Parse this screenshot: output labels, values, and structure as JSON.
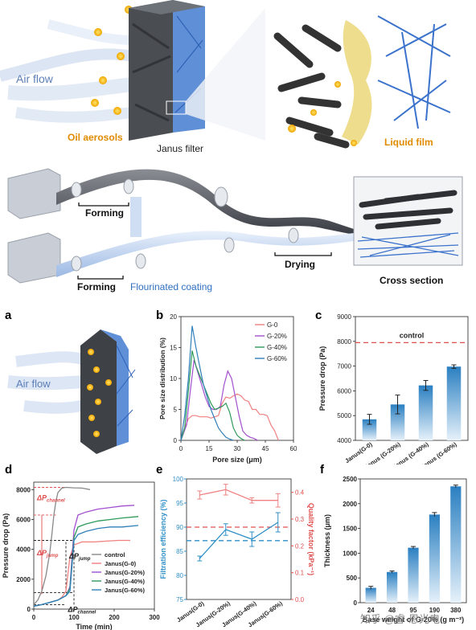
{
  "schematic": {
    "air_flow": "Air flow",
    "oil_aerosols": "Oil aerosols",
    "janus_filter": "Janus filter",
    "liquid_film": "Liquid film",
    "forming_top": "Forming",
    "forming_bottom": "Forming",
    "flourinated_coating": "Flourinated coating",
    "drying": "Drying",
    "cross_section": "Cross section"
  },
  "panel_a": {
    "letter": "a",
    "air_flow": "Air flow"
  },
  "panel_b": {
    "letter": "b"
  },
  "panel_c": {
    "letter": "c"
  },
  "panel_d": {
    "letter": "d",
    "dp_channel": "ΔP",
    "dp_channel_sub": "channel",
    "dp_jump": "ΔP",
    "dp_jump_sub": "jump",
    "dp_jump2": "ΔP",
    "dp_jump2_sub": "jump",
    "dp_channel2": "ΔP",
    "dp_channel2_sub": "channel"
  },
  "panel_e": {
    "letter": "e"
  },
  "panel_f": {
    "letter": "f"
  },
  "watermark": "知乎 @睿·恩光电",
  "chart_data": [
    {
      "id": "b",
      "type": "line",
      "xlabel": "Pore size (μm)",
      "ylabel": "Pore size distribution (%)",
      "xlim": [
        0,
        60
      ],
      "ylim": [
        0,
        20
      ],
      "xticks": [
        "0",
        "15",
        "30",
        "45",
        "60"
      ],
      "yticks": [
        "0",
        "5",
        "10",
        "15",
        "20"
      ],
      "legend_position": "top-right",
      "series": [
        {
          "name": "G-0",
          "color": "#f08080",
          "x": [
            0,
            2,
            4,
            6,
            8,
            10,
            12,
            14,
            16,
            18,
            20,
            22,
            24,
            26,
            28,
            30,
            32,
            34,
            36,
            38,
            40,
            42,
            44,
            46,
            48,
            50,
            52
          ],
          "y": [
            0,
            2,
            3.5,
            4,
            4,
            3.8,
            3.8,
            3.8,
            3.6,
            3.8,
            4,
            6,
            7,
            6.8,
            7.2,
            7.5,
            7.2,
            6.5,
            6.3,
            5,
            5,
            4.2,
            4.2,
            4,
            2.5,
            1.5,
            0
          ]
        },
        {
          "name": "G-20%",
          "color": "#a24fd0",
          "x": [
            0,
            3,
            5,
            7,
            9,
            11,
            13,
            15,
            17,
            19,
            21,
            23,
            25,
            27,
            29,
            31,
            33,
            35,
            37,
            39,
            41
          ],
          "y": [
            0,
            2.5,
            8,
            13,
            11,
            9,
            7,
            5.5,
            5,
            5,
            5.5,
            9,
            11.2,
            10,
            7,
            4,
            1.5,
            0.8,
            0.5,
            0.3,
            0
          ]
        },
        {
          "name": "G-40%",
          "color": "#2e9a5a",
          "x": [
            0,
            2,
            4,
            6,
            8,
            10,
            12,
            14,
            16,
            18,
            20,
            22,
            24,
            26,
            28,
            30,
            32,
            34
          ],
          "y": [
            0,
            2,
            8,
            14.5,
            12,
            10.5,
            9,
            7.5,
            6,
            5,
            5.2,
            5.5,
            6,
            4.5,
            2,
            0.8,
            0.3,
            0
          ]
        },
        {
          "name": "G-60%",
          "color": "#2f7fb8",
          "x": [
            0,
            2,
            4,
            6,
            8,
            10,
            12,
            14,
            16,
            18,
            20,
            22,
            24,
            26,
            28
          ],
          "y": [
            0,
            4,
            10,
            18.5,
            15,
            12,
            9,
            7,
            5,
            3.5,
            2,
            1.2,
            0.5,
            0.2,
            0
          ]
        }
      ]
    },
    {
      "id": "c",
      "type": "bar",
      "ylabel": "Pressure drop (Pa)",
      "ylim": [
        4000,
        9000
      ],
      "yticks": [
        "4000",
        "5000",
        "6000",
        "7000",
        "8000",
        "9000"
      ],
      "categories": [
        "Janus(G-0)",
        "Janus (G-20%)",
        "Janus (G-40%)",
        "Janus (G-60%)"
      ],
      "values": [
        4850,
        5450,
        6220,
        6980
      ],
      "errors": [
        200,
        380,
        200,
        70
      ],
      "reference_label": "control",
      "reference_value": 7950
    },
    {
      "id": "d",
      "type": "line",
      "xlabel": "Time (min)",
      "ylabel": "Pressure drop (Pa)",
      "xlim": [
        0,
        300
      ],
      "ylim": [
        0,
        8500
      ],
      "xticks": [
        "0",
        "100",
        "200",
        "300"
      ],
      "yticks": [
        "0",
        "2000",
        "4000",
        "6000",
        "8000"
      ],
      "legend_position": "bottom-right",
      "series": [
        {
          "name": "control",
          "color": "#888888",
          "x": [
            0,
            10,
            20,
            30,
            40,
            45,
            50,
            55,
            60,
            70,
            80,
            100,
            120,
            140
          ],
          "y": [
            300,
            600,
            1200,
            2200,
            3800,
            5000,
            6300,
            7200,
            7800,
            8100,
            8150,
            8120,
            8100,
            8000
          ]
        },
        {
          "name": "Janus(G-0)",
          "color": "#f08080",
          "x": [
            0,
            20,
            40,
            60,
            70,
            80,
            90,
            100,
            120,
            150,
            180,
            210,
            240
          ],
          "y": [
            200,
            300,
            450,
            600,
            800,
            1200,
            3500,
            4300,
            4500,
            4500,
            4550,
            4600,
            4600
          ]
        },
        {
          "name": "Janus(G-20%)",
          "color": "#a24fd0",
          "x": [
            0,
            20,
            40,
            60,
            70,
            80,
            90,
            100,
            110,
            130,
            160,
            190,
            220,
            250
          ],
          "y": [
            200,
            300,
            450,
            600,
            750,
            900,
            1500,
            5300,
            6300,
            6500,
            6700,
            6800,
            6900,
            6950
          ]
        },
        {
          "name": "Janus(G-40%)",
          "color": "#2e9a5a",
          "x": [
            0,
            20,
            40,
            60,
            70,
            80,
            90,
            100,
            110,
            130,
            160,
            190,
            220,
            260
          ],
          "y": [
            200,
            300,
            450,
            600,
            750,
            900,
            1400,
            4800,
            5500,
            5700,
            5900,
            6000,
            6100,
            6200
          ]
        },
        {
          "name": "Janus(G-60%)",
          "color": "#2f7fb8",
          "x": [
            0,
            20,
            40,
            60,
            70,
            80,
            90,
            100,
            110,
            130,
            160,
            190,
            220,
            260
          ],
          "y": [
            200,
            300,
            450,
            600,
            750,
            900,
            1200,
            4600,
            5000,
            5200,
            5400,
            5500,
            5500,
            5600
          ]
        }
      ]
    },
    {
      "id": "e",
      "type": "line",
      "ylabel": "Filtration efficiency (%)",
      "ylabel_right": "Quality factor (kPa⁻¹)",
      "ylim": [
        75,
        100
      ],
      "ylim_right": [
        0.0,
        0.45
      ],
      "yticks": [
        "75",
        "80",
        "85",
        "90",
        "95",
        "100"
      ],
      "yticks_right": [
        "0.0",
        "0.1",
        "0.2",
        "0.3",
        "0.4"
      ],
      "categories": [
        "Janus(G-0)",
        "Janus(G-20%)",
        "Janus(G-40%)",
        "Janus(G-60%)"
      ],
      "series": [
        {
          "name": "Quality factor",
          "axis": "right",
          "color": "#f08080",
          "values": [
            0.39,
            0.41,
            0.37,
            0.37
          ],
          "errors": [
            0.015,
            0.02,
            0.01,
            0.025
          ]
        },
        {
          "name": "Filtration efficiency",
          "axis": "left",
          "color": "#2f8fc6",
          "values": [
            83.5,
            89.5,
            87.5,
            91
          ],
          "errors": [
            0.5,
            1.2,
            1.5,
            2
          ]
        }
      ],
      "reference_right": 0.27,
      "reference_left": 87.2
    },
    {
      "id": "f",
      "type": "bar",
      "xlabel": "Base weight of G-20% (g m⁻²)",
      "ylabel": "Thickness (μm)",
      "ylim": [
        0,
        2500
      ],
      "yticks": [
        "0",
        "500",
        "1000",
        "1500",
        "2000",
        "2500"
      ],
      "categories": [
        "24",
        "48",
        "95",
        "190",
        "380"
      ],
      "values": [
        300,
        620,
        1110,
        1780,
        2350
      ],
      "errors": [
        30,
        20,
        25,
        40,
        25
      ]
    }
  ]
}
